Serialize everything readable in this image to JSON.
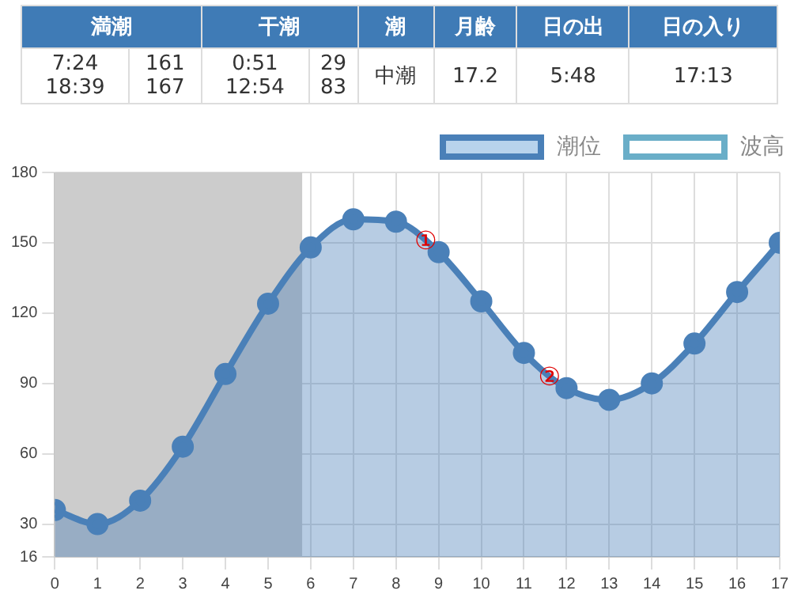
{
  "chart_data": {
    "type": "area",
    "x": [
      0,
      1,
      2,
      3,
      4,
      5,
      6,
      7,
      8,
      9,
      10,
      11,
      12,
      13,
      14,
      15,
      16,
      17
    ],
    "series": [
      {
        "name": "潮位",
        "color": "#4a80b8",
        "values": [
          36,
          30,
          40,
          63,
          94,
          124,
          148,
          160,
          159,
          146,
          125,
          103,
          88,
          83,
          90,
          107,
          129,
          150
        ]
      },
      {
        "name": "波高",
        "color": "#6aaec8",
        "values": [
          null,
          null,
          null,
          null,
          null,
          null,
          null,
          null,
          null,
          null,
          null,
          null,
          null,
          null,
          null,
          null,
          null,
          null
        ]
      }
    ],
    "xlim": [
      0,
      17
    ],
    "xticks": [
      0,
      1,
      2,
      3,
      4,
      5,
      6,
      7,
      8,
      9,
      10,
      11,
      12,
      13,
      14,
      15,
      16,
      17
    ],
    "ylim": [
      16,
      180
    ],
    "yticks": [
      16,
      30,
      60,
      90,
      120,
      150,
      180
    ],
    "grid": true,
    "legend": "top right",
    "marker": "circle",
    "bands": [
      {
        "axis": "x",
        "from": 0,
        "to": 5.8,
        "color": "#cccccc"
      }
    ],
    "annotations": [
      "満潮",
      "干潮",
      "潮",
      "月齢",
      "日の出",
      "日の入り",
      "7:24\n18:39",
      "161\n167",
      "0:51\n12:54",
      "29\n83",
      "中潮",
      "17.2",
      "5:48",
      "17:13",
      {
        "text": "①",
        "x": 8.7,
        "y": 150
      },
      {
        "text": "②",
        "x": 11.6,
        "y": 92
      }
    ]
  }
}
